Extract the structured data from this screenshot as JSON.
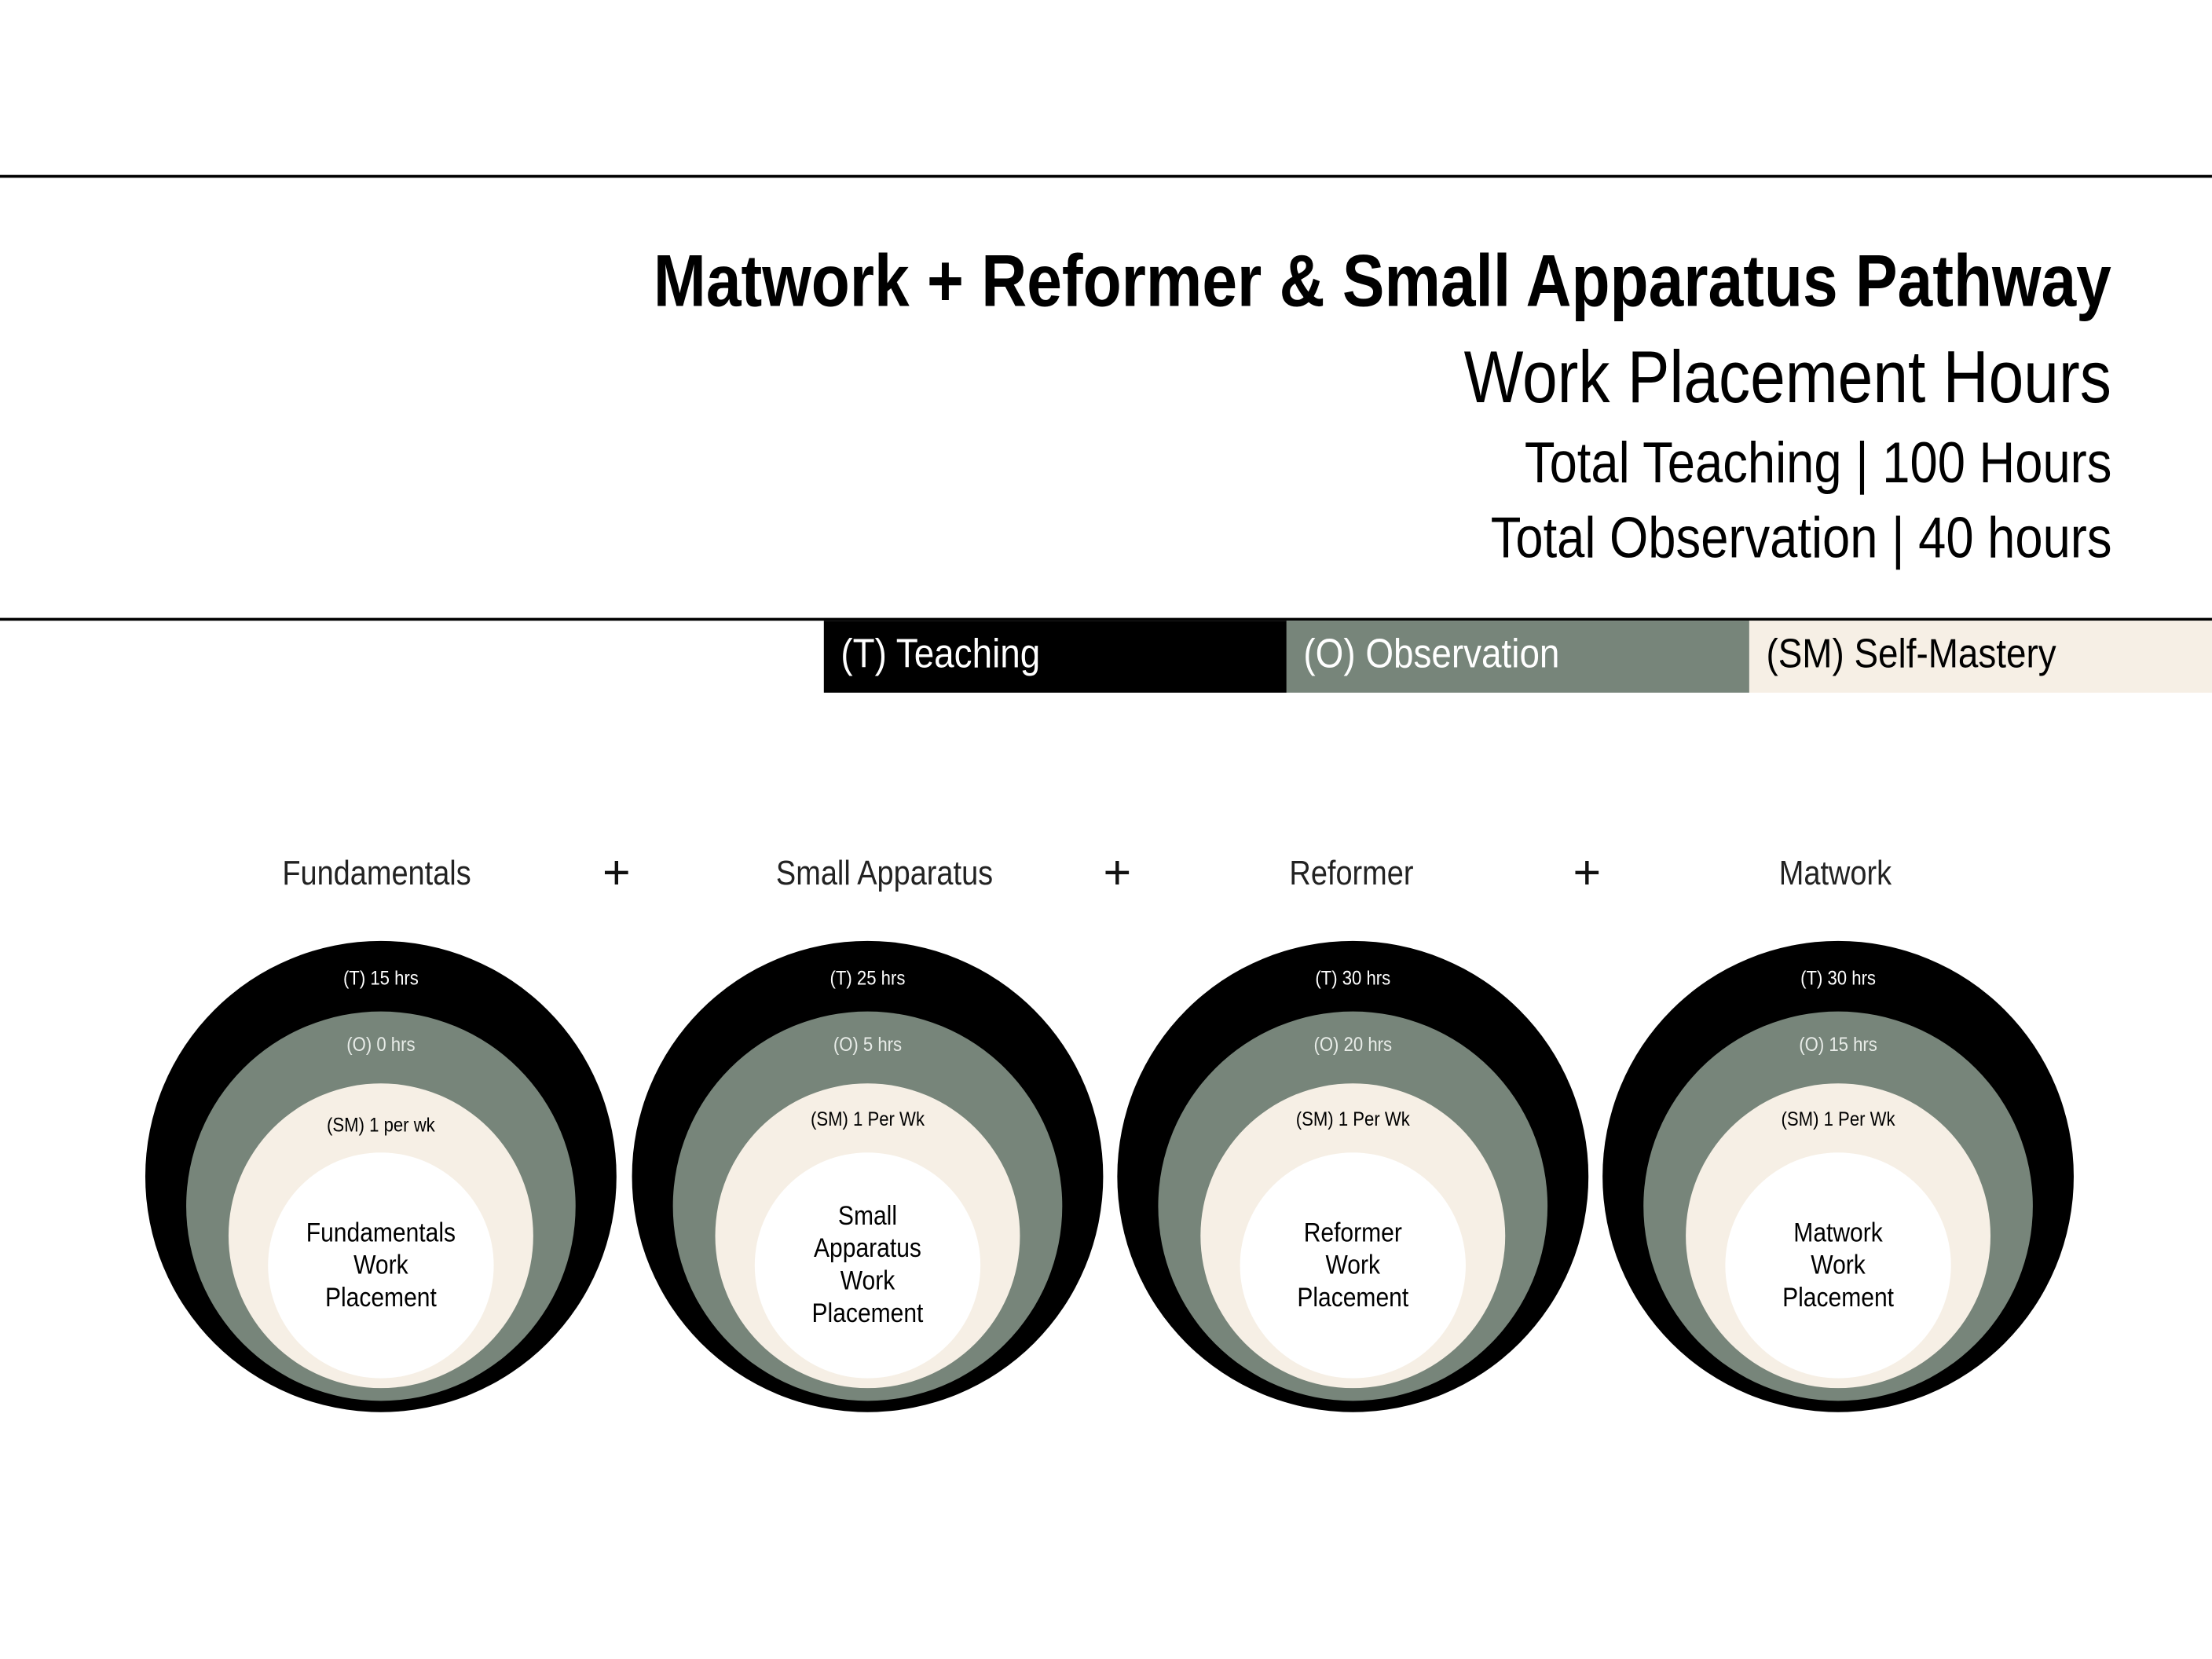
{
  "header": {
    "title": "Matwork + Reformer & Small Apparatus Pathway",
    "subtitle": "Work Placement Hours",
    "total_teaching": "Total Teaching | 100 Hours",
    "total_observation": "Total Observation | 40 hours"
  },
  "legend": [
    {
      "label": "(T) Teaching",
      "color": "#000000",
      "text_color": "#ffffff"
    },
    {
      "label": "(O) Observation",
      "color": "#77857a",
      "text_color": "#ffffff"
    },
    {
      "label": "(SM) Self-Mastery",
      "color": "#f6efe5",
      "text_color": "#000000"
    }
  ],
  "plus_sign": "+",
  "modules": [
    {
      "heading": "Fundamentals",
      "teaching": "(T) 15 hrs",
      "observation": "(O) 0 hrs",
      "self_mastery": "(SM) 1 per wk",
      "center_lines": [
        "Fundamentals",
        "Work",
        "Placement"
      ]
    },
    {
      "heading": "Small Apparatus",
      "teaching": "(T) 25 hrs",
      "observation": "(O) 5 hrs",
      "self_mastery": "(SM) 1 Per Wk",
      "center_lines": [
        "Small",
        "Apparatus",
        "Work",
        "Placement"
      ]
    },
    {
      "heading": "Reformer",
      "teaching": "(T) 30 hrs",
      "observation": "(O) 20 hrs",
      "self_mastery": "(SM) 1 Per Wk",
      "center_lines": [
        "Reformer",
        "Work",
        "Placement"
      ]
    },
    {
      "heading": "Matwork",
      "teaching": "(T) 30 hrs",
      "observation": "(O) 15 hrs",
      "self_mastery": "(SM) 1 Per Wk",
      "center_lines": [
        "Matwork",
        "Work",
        "Placement"
      ]
    }
  ]
}
